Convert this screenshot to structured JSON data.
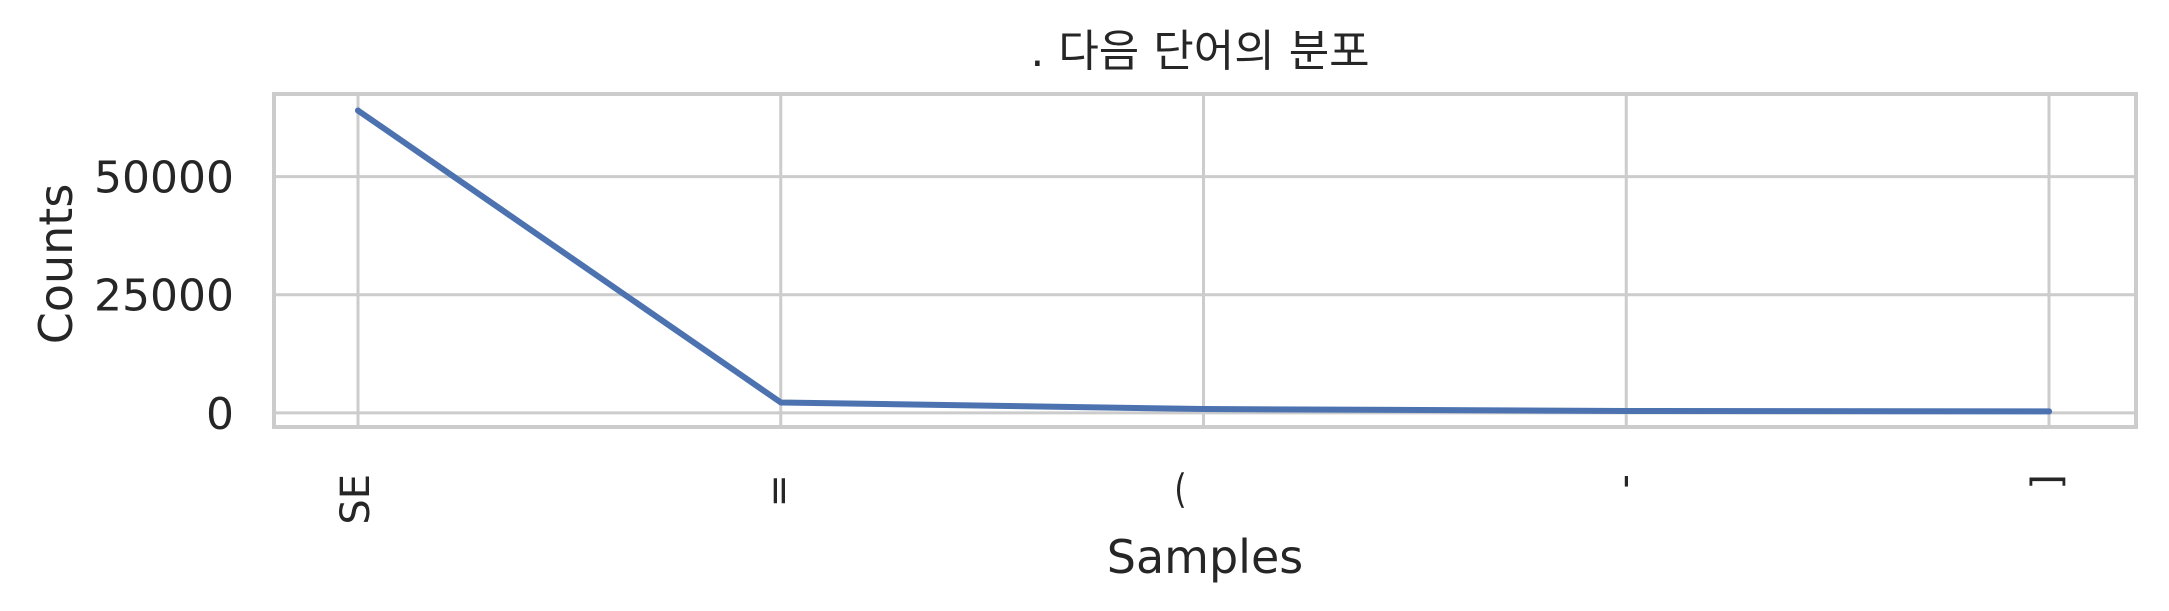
{
  "chart_data": {
    "type": "line",
    "title": ". 다음 단어의 분포",
    "xlabel": "Samples",
    "ylabel": "Counts",
    "categories": [
      "SE",
      "=",
      "⁀",
      "-",
      "]"
    ],
    "series": [
      {
        "values": [
          64000,
          2200,
          800,
          400,
          300
        ]
      }
    ],
    "ylim": [
      -3000,
      67500
    ],
    "yticks": [
      0,
      25000,
      50000
    ],
    "ytick_labels": [
      "0",
      "25000",
      "50000"
    ],
    "grid": true,
    "line_color": "#4c72b0"
  }
}
